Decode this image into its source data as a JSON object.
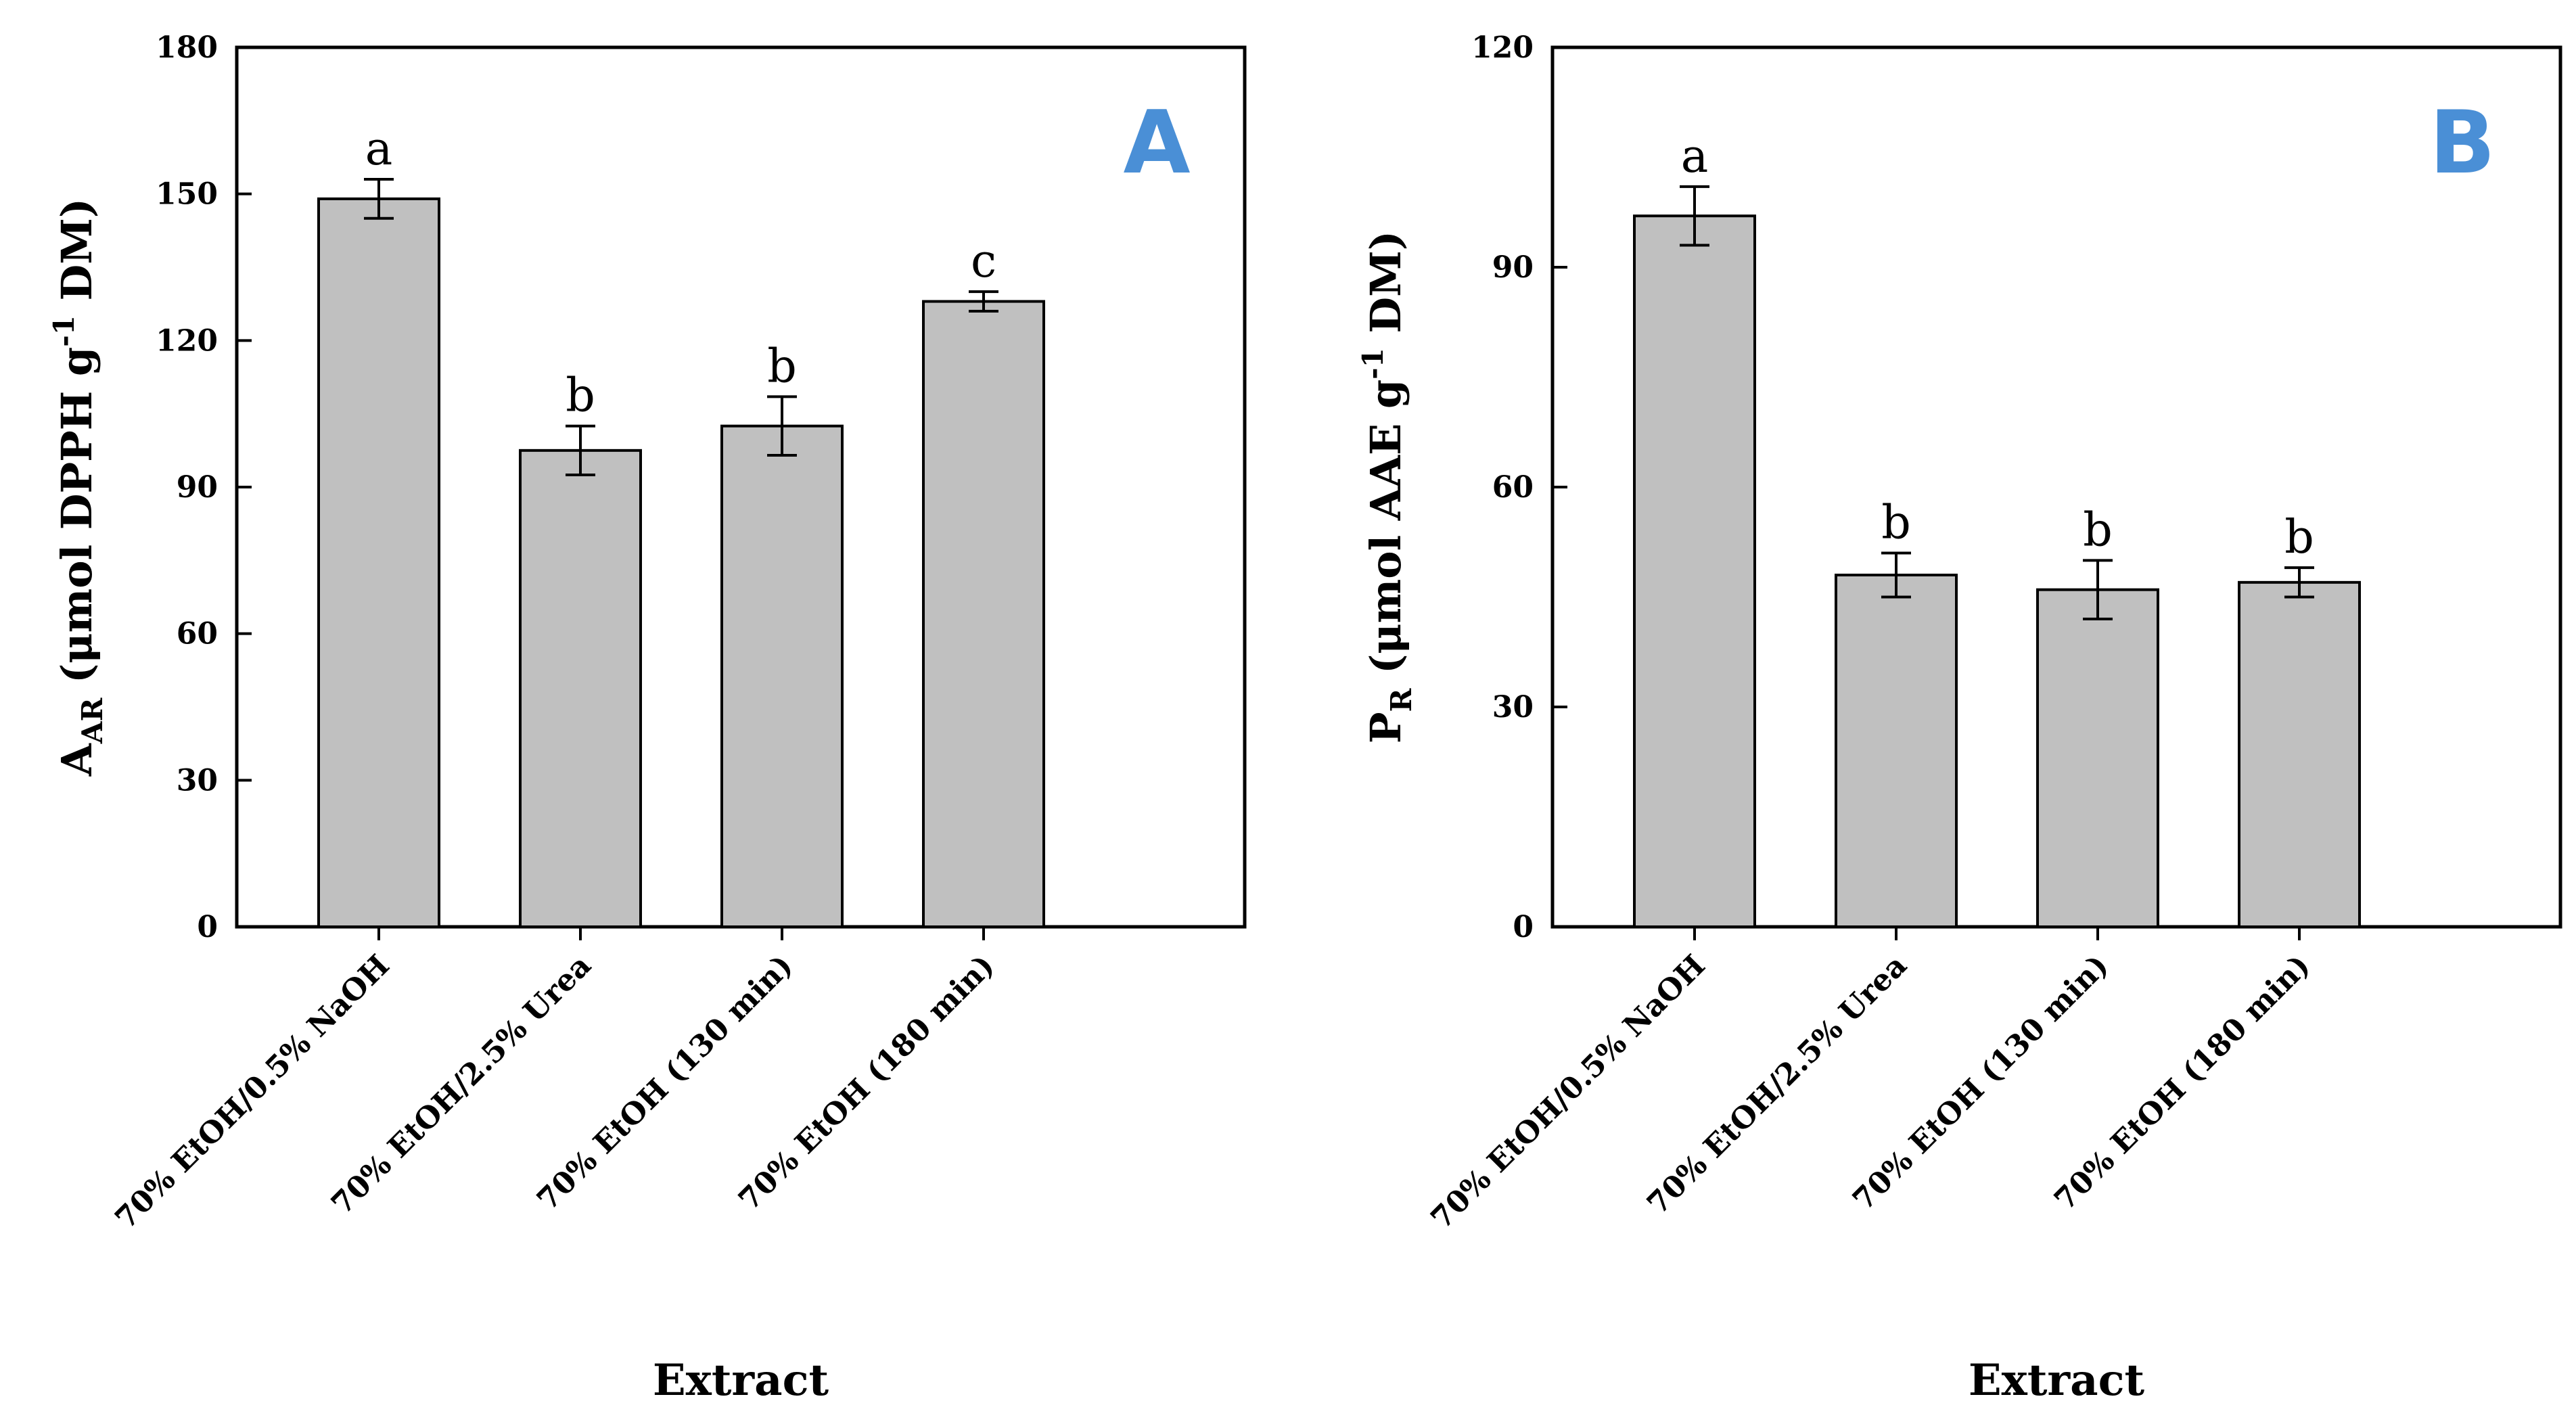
{
  "chart_data": [
    {
      "type": "bar",
      "panel_label": "A",
      "categories": [
        "70% EtOH/0.5% NaOH",
        "70% EtOH/2.5% Urea",
        "70% EtOH (130 min)",
        "70% EtOH (180 min)"
      ],
      "values": [
        149,
        97.5,
        102.5,
        128
      ],
      "errors": [
        4,
        5,
        6,
        2
      ],
      "letters": [
        "a",
        "b",
        "b",
        "c"
      ],
      "yticks": [
        "0",
        "30",
        "60",
        "90",
        "120",
        "150",
        "180"
      ],
      "ylim": [
        0,
        180
      ],
      "ylabel": {
        "main": "A",
        "sub": "AR",
        "pre": " (μmol DPPH g",
        "sup": "-1",
        "post": " DM)"
      },
      "xlabel": "Extract",
      "colors": {
        "bar": "#c0c0c0",
        "panel": "#4a8fd6"
      }
    },
    {
      "type": "bar",
      "panel_label": "B",
      "categories": [
        "70% EtOH/0.5% NaOH",
        "70% EtOH/2.5% Urea",
        "70% EtOH (130 min)",
        "70% EtOH (180 min)"
      ],
      "values": [
        97,
        48,
        46,
        47
      ],
      "errors": [
        4,
        3,
        4,
        2
      ],
      "letters": [
        "a",
        "b",
        "b",
        "b"
      ],
      "yticks": [
        "0",
        "30",
        "60",
        "90",
        "120"
      ],
      "ylim": [
        0,
        120
      ],
      "ylabel": {
        "main": "P",
        "sub": "R",
        "pre": " (μmol AAE g",
        "sup": "-1",
        "post": " DM)"
      },
      "xlabel": "Extract",
      "colors": {
        "bar": "#c0c0c0",
        "panel": "#4a8fd6"
      }
    }
  ]
}
